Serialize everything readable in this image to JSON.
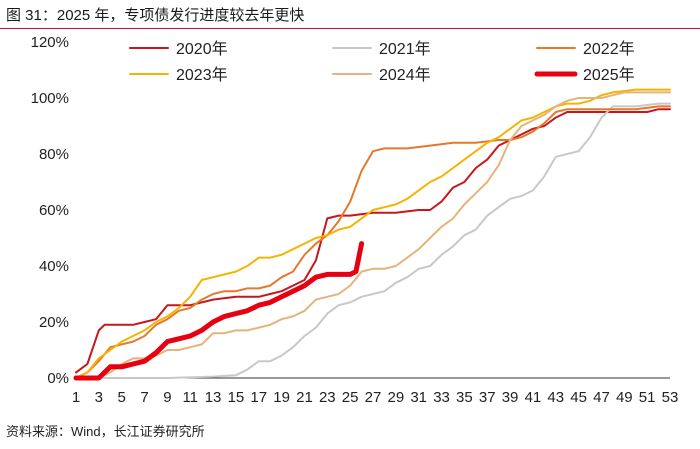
{
  "title": "图 31：2025 年，专项债发行进度较去年更快",
  "source": "资料来源：Wind，长江证券研究所",
  "chart_data": {
    "type": "line",
    "title": "图 31：2025 年，专项债发行进度较去年更快",
    "xlabel": "",
    "ylabel": "",
    "xlim": [
      1,
      53
    ],
    "ylim": [
      0,
      120
    ],
    "yticks": [
      "0%",
      "20%",
      "40%",
      "60%",
      "80%",
      "100%",
      "120%"
    ],
    "xticks": [
      "1",
      "3",
      "5",
      "7",
      "9",
      "11",
      "13",
      "15",
      "17",
      "19",
      "21",
      "23",
      "25",
      "27",
      "29",
      "31",
      "33",
      "35",
      "37",
      "39",
      "41",
      "43",
      "45",
      "47",
      "49",
      "51",
      "53"
    ],
    "grid": false,
    "legend": "top, 3 columns",
    "series": [
      {
        "name": "2020年",
        "color": "#c8161d",
        "width": 2,
        "points": [
          [
            1,
            2
          ],
          [
            2,
            5
          ],
          [
            3,
            17
          ],
          [
            3.5,
            19
          ],
          [
            5,
            19
          ],
          [
            6,
            19
          ],
          [
            7,
            20
          ],
          [
            8,
            21
          ],
          [
            9,
            26
          ],
          [
            10,
            26
          ],
          [
            11,
            26
          ],
          [
            12,
            27
          ],
          [
            13,
            28
          ],
          [
            15,
            29
          ],
          [
            17,
            29
          ],
          [
            18,
            30
          ],
          [
            19,
            31
          ],
          [
            20,
            33
          ],
          [
            21,
            35
          ],
          [
            22,
            42
          ],
          [
            23,
            57
          ],
          [
            24,
            58
          ],
          [
            25,
            58
          ],
          [
            27,
            59
          ],
          [
            29,
            59
          ],
          [
            31,
            60
          ],
          [
            32,
            60
          ],
          [
            33,
            63
          ],
          [
            34,
            68
          ],
          [
            35,
            70
          ],
          [
            36,
            75
          ],
          [
            37,
            78
          ],
          [
            38,
            83
          ],
          [
            39,
            85
          ],
          [
            40,
            87
          ],
          [
            41,
            89
          ],
          [
            42,
            90
          ],
          [
            43,
            93
          ],
          [
            44,
            95
          ],
          [
            45,
            95
          ],
          [
            47,
            95
          ],
          [
            49,
            95
          ],
          [
            51,
            95
          ],
          [
            52,
            96
          ],
          [
            53,
            96
          ]
        ]
      },
      {
        "name": "2021年",
        "color": "#c8c8c8",
        "width": 2,
        "points": [
          [
            1,
            0
          ],
          [
            9,
            0
          ],
          [
            13,
            0.5
          ],
          [
            15,
            1
          ],
          [
            16,
            3
          ],
          [
            17,
            6
          ],
          [
            18,
            6
          ],
          [
            19,
            8
          ],
          [
            20,
            11
          ],
          [
            21,
            15
          ],
          [
            22,
            18
          ],
          [
            23,
            23
          ],
          [
            24,
            26
          ],
          [
            25,
            27
          ],
          [
            26,
            29
          ],
          [
            27,
            30
          ],
          [
            28,
            31
          ],
          [
            29,
            34
          ],
          [
            30,
            36
          ],
          [
            31,
            39
          ],
          [
            32,
            40
          ],
          [
            33,
            44
          ],
          [
            34,
            47
          ],
          [
            35,
            51
          ],
          [
            36,
            53
          ],
          [
            37,
            58
          ],
          [
            38,
            61
          ],
          [
            39,
            64
          ],
          [
            40,
            65
          ],
          [
            41,
            67
          ],
          [
            42,
            72
          ],
          [
            43,
            79
          ],
          [
            44,
            80
          ],
          [
            45,
            81
          ],
          [
            46,
            86
          ],
          [
            47,
            93
          ],
          [
            48,
            97
          ],
          [
            50,
            97
          ],
          [
            52,
            98
          ],
          [
            53,
            98
          ]
        ]
      },
      {
        "name": "2022年",
        "color": "#e5782d",
        "width": 2,
        "points": [
          [
            1,
            0
          ],
          [
            2,
            2
          ],
          [
            3,
            6
          ],
          [
            4,
            11
          ],
          [
            5,
            12
          ],
          [
            6,
            13
          ],
          [
            7,
            15
          ],
          [
            8,
            19
          ],
          [
            9,
            21
          ],
          [
            10,
            24
          ],
          [
            11,
            25
          ],
          [
            12,
            28
          ],
          [
            13,
            30
          ],
          [
            14,
            31
          ],
          [
            15,
            31
          ],
          [
            16,
            32
          ],
          [
            17,
            32
          ],
          [
            18,
            33
          ],
          [
            19,
            36
          ],
          [
            20,
            38
          ],
          [
            21,
            44
          ],
          [
            22,
            48
          ],
          [
            23,
            51
          ],
          [
            24,
            56
          ],
          [
            25,
            63
          ],
          [
            26,
            74
          ],
          [
            27,
            81
          ],
          [
            28,
            82
          ],
          [
            30,
            82
          ],
          [
            32,
            83
          ],
          [
            34,
            84
          ],
          [
            36,
            84
          ],
          [
            38,
            85
          ],
          [
            39,
            85
          ],
          [
            40,
            86
          ],
          [
            41,
            88
          ],
          [
            42,
            91
          ],
          [
            43,
            95
          ],
          [
            44,
            96
          ],
          [
            46,
            96
          ],
          [
            48,
            96
          ],
          [
            50,
            96
          ],
          [
            52,
            97
          ],
          [
            53,
            97
          ]
        ]
      },
      {
        "name": "2023年",
        "color": "#f4b400",
        "width": 2,
        "points": [
          [
            1,
            0
          ],
          [
            2,
            2
          ],
          [
            3,
            7
          ],
          [
            4,
            10
          ],
          [
            5,
            13
          ],
          [
            6,
            15
          ],
          [
            7,
            17
          ],
          [
            8,
            20
          ],
          [
            9,
            22
          ],
          [
            10,
            25
          ],
          [
            11,
            29
          ],
          [
            12,
            35
          ],
          [
            13,
            36
          ],
          [
            14,
            37
          ],
          [
            15,
            38
          ],
          [
            16,
            40
          ],
          [
            17,
            43
          ],
          [
            18,
            43
          ],
          [
            19,
            44
          ],
          [
            20,
            46
          ],
          [
            21,
            48
          ],
          [
            22,
            50
          ],
          [
            23,
            51
          ],
          [
            24,
            53
          ],
          [
            25,
            54
          ],
          [
            26,
            57
          ],
          [
            27,
            60
          ],
          [
            28,
            61
          ],
          [
            29,
            62
          ],
          [
            30,
            64
          ],
          [
            31,
            67
          ],
          [
            32,
            70
          ],
          [
            33,
            72
          ],
          [
            34,
            75
          ],
          [
            35,
            78
          ],
          [
            36,
            81
          ],
          [
            37,
            84
          ],
          [
            38,
            86
          ],
          [
            39,
            89
          ],
          [
            40,
            92
          ],
          [
            41,
            93
          ],
          [
            42,
            95
          ],
          [
            43,
            97
          ],
          [
            44,
            98
          ],
          [
            45,
            98
          ],
          [
            46,
            99
          ],
          [
            47,
            101
          ],
          [
            48,
            102
          ],
          [
            50,
            103
          ],
          [
            52,
            103
          ],
          [
            53,
            103
          ]
        ]
      },
      {
        "name": "2024年",
        "color": "#e5b47a",
        "width": 2,
        "points": [
          [
            1,
            0
          ],
          [
            3,
            0
          ],
          [
            4,
            2
          ],
          [
            5,
            5
          ],
          [
            6,
            7
          ],
          [
            7,
            7
          ],
          [
            8,
            8
          ],
          [
            9,
            10
          ],
          [
            10,
            10
          ],
          [
            11,
            11
          ],
          [
            12,
            12
          ],
          [
            13,
            16
          ],
          [
            14,
            16
          ],
          [
            15,
            17
          ],
          [
            16,
            17
          ],
          [
            17,
            18
          ],
          [
            18,
            19
          ],
          [
            19,
            21
          ],
          [
            20,
            22
          ],
          [
            21,
            24
          ],
          [
            22,
            28
          ],
          [
            23,
            29
          ],
          [
            24,
            30
          ],
          [
            25,
            33
          ],
          [
            26,
            38
          ],
          [
            27,
            39
          ],
          [
            28,
            39
          ],
          [
            29,
            40
          ],
          [
            30,
            43
          ],
          [
            31,
            46
          ],
          [
            32,
            50
          ],
          [
            33,
            54
          ],
          [
            34,
            57
          ],
          [
            35,
            62
          ],
          [
            36,
            66
          ],
          [
            37,
            70
          ],
          [
            38,
            76
          ],
          [
            39,
            85
          ],
          [
            40,
            90
          ],
          [
            41,
            92
          ],
          [
            42,
            94
          ],
          [
            43,
            97
          ],
          [
            44,
            99
          ],
          [
            45,
            100
          ],
          [
            46,
            100
          ],
          [
            47,
            100
          ],
          [
            48,
            101
          ],
          [
            49,
            102
          ],
          [
            50,
            102
          ],
          [
            52,
            102
          ],
          [
            53,
            102
          ]
        ]
      },
      {
        "name": "2025年",
        "color": "#e60012",
        "width": 5,
        "points": [
          [
            1,
            0
          ],
          [
            3,
            0
          ],
          [
            4,
            4
          ],
          [
            5,
            4
          ],
          [
            6,
            5
          ],
          [
            7,
            6
          ],
          [
            8,
            9
          ],
          [
            9,
            13
          ],
          [
            10,
            14
          ],
          [
            11,
            15
          ],
          [
            12,
            17
          ],
          [
            13,
            20
          ],
          [
            14,
            22
          ],
          [
            15,
            23
          ],
          [
            16,
            24
          ],
          [
            17,
            26
          ],
          [
            18,
            27
          ],
          [
            19,
            29
          ],
          [
            20,
            31
          ],
          [
            21,
            33
          ],
          [
            22,
            36
          ],
          [
            23,
            37
          ],
          [
            24,
            37
          ],
          [
            25,
            37
          ],
          [
            25.5,
            38
          ],
          [
            26,
            48
          ]
        ]
      }
    ]
  }
}
